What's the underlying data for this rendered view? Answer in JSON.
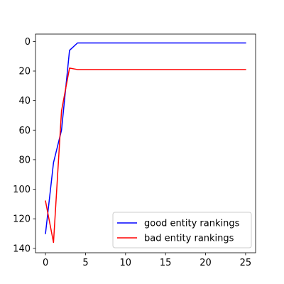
{
  "chart_data": {
    "type": "line",
    "title": "",
    "xlabel": "",
    "ylabel": "",
    "xlim": [
      -1.25,
      26.25
    ],
    "ylim": [
      143,
      -5
    ],
    "y_inverted": true,
    "grid": false,
    "legend_position": "lower-right",
    "x_ticks": [
      0,
      5,
      10,
      15,
      20,
      25
    ],
    "y_ticks": [
      0,
      20,
      40,
      60,
      80,
      100,
      120,
      140
    ],
    "series": [
      {
        "name": "good entity rankings",
        "color": "#0000ff",
        "x": [
          0,
          1,
          2,
          3,
          4,
          5,
          6,
          7,
          8,
          9,
          10,
          11,
          12,
          13,
          14,
          15,
          16,
          17,
          18,
          19,
          20,
          21,
          22,
          23,
          24,
          25
        ],
        "y": [
          130,
          82,
          60,
          6,
          1,
          1,
          1,
          1,
          1,
          1,
          1,
          1,
          1,
          1,
          1,
          1,
          1,
          1,
          1,
          1,
          1,
          1,
          1,
          1,
          1,
          1
        ]
      },
      {
        "name": "bad entity rankings",
        "color": "#ff0000",
        "x": [
          0,
          1,
          2,
          3,
          4,
          5,
          6,
          7,
          8,
          9,
          10,
          11,
          12,
          13,
          14,
          15,
          16,
          17,
          18,
          19,
          20,
          21,
          22,
          23,
          24,
          25
        ],
        "y": [
          108,
          136,
          47,
          18,
          19,
          19,
          19,
          19,
          19,
          19,
          19,
          19,
          19,
          19,
          19,
          19,
          19,
          19,
          19,
          19,
          19,
          19,
          19,
          19,
          19,
          19
        ]
      }
    ]
  }
}
